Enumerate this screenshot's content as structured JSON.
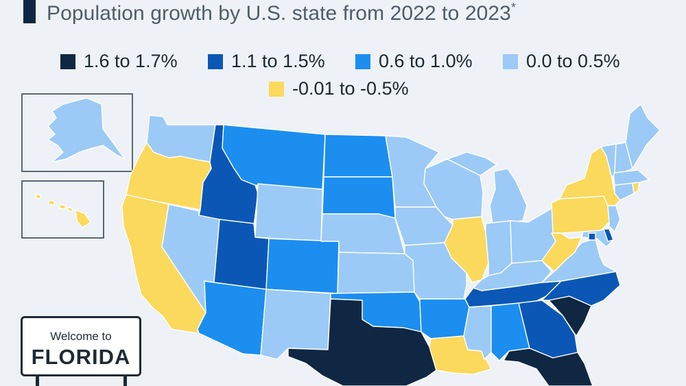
{
  "title": "Population growth by U.S. state from 2022 to 2023",
  "title_mark": "*",
  "colors": {
    "c1": "#0f2742",
    "c2": "#0b57b6",
    "c3": "#1b8ef0",
    "c4": "#9ccaf6",
    "c5": "#fad95c",
    "border": "#ffffff"
  },
  "legend": [
    {
      "label": "1.6 to 1.7%",
      "color": "#0f2742"
    },
    {
      "label": "1.1 to 1.5%",
      "color": "#0b57b6"
    },
    {
      "label": "0.6 to 1.0%",
      "color": "#1b8ef0"
    },
    {
      "label": "0.0 to 0.5%",
      "color": "#9ccaf6"
    },
    {
      "label": "-0.01 to -0.5%",
      "color": "#fad95c"
    }
  ],
  "sign": {
    "line1": "Welcome to",
    "line2": "FLORIDA"
  },
  "states": [
    {
      "name": "Washington",
      "class": "0.0 to 0.5%"
    },
    {
      "name": "Oregon",
      "class": "-0.01 to -0.5%"
    },
    {
      "name": "California",
      "class": "-0.01 to -0.5%"
    },
    {
      "name": "Idaho",
      "class": "1.1 to 1.5%"
    },
    {
      "name": "Nevada",
      "class": "0.0 to 0.5%"
    },
    {
      "name": "Montana",
      "class": "0.6 to 1.0%"
    },
    {
      "name": "Wyoming",
      "class": "0.0 to 0.5%"
    },
    {
      "name": "Utah",
      "class": "1.1 to 1.5%"
    },
    {
      "name": "Arizona",
      "class": "0.6 to 1.0%"
    },
    {
      "name": "Colorado",
      "class": "0.6 to 1.0%"
    },
    {
      "name": "New Mexico",
      "class": "0.0 to 0.5%"
    },
    {
      "name": "North Dakota",
      "class": "0.6 to 1.0%"
    },
    {
      "name": "South Dakota",
      "class": "0.6 to 1.0%"
    },
    {
      "name": "Nebraska",
      "class": "0.0 to 0.5%"
    },
    {
      "name": "Kansas",
      "class": "0.0 to 0.5%"
    },
    {
      "name": "Oklahoma",
      "class": "0.6 to 1.0%"
    },
    {
      "name": "Texas",
      "class": "1.6 to 1.7%"
    },
    {
      "name": "Minnesota",
      "class": "0.0 to 0.5%"
    },
    {
      "name": "Iowa",
      "class": "0.0 to 0.5%"
    },
    {
      "name": "Missouri",
      "class": "0.0 to 0.5%"
    },
    {
      "name": "Arkansas",
      "class": "0.6 to 1.0%"
    },
    {
      "name": "Louisiana",
      "class": "-0.01 to -0.5%"
    },
    {
      "name": "Wisconsin",
      "class": "0.0 to 0.5%"
    },
    {
      "name": "Illinois",
      "class": "-0.01 to -0.5%"
    },
    {
      "name": "Michigan",
      "class": "0.0 to 0.5%"
    },
    {
      "name": "Indiana",
      "class": "0.0 to 0.5%"
    },
    {
      "name": "Ohio",
      "class": "0.0 to 0.5%"
    },
    {
      "name": "Kentucky",
      "class": "0.0 to 0.5%"
    },
    {
      "name": "Tennessee",
      "class": "1.1 to 1.5%"
    },
    {
      "name": "Mississippi",
      "class": "0.0 to 0.5%"
    },
    {
      "name": "Alabama",
      "class": "0.6 to 1.0%"
    },
    {
      "name": "Georgia",
      "class": "1.1 to 1.5%"
    },
    {
      "name": "Florida",
      "class": "1.6 to 1.7%"
    },
    {
      "name": "South Carolina",
      "class": "1.6 to 1.7%"
    },
    {
      "name": "North Carolina",
      "class": "1.1 to 1.5%"
    },
    {
      "name": "Virginia",
      "class": "0.0 to 0.5%"
    },
    {
      "name": "West Virginia",
      "class": "-0.01 to -0.5%"
    },
    {
      "name": "Pennsylvania",
      "class": "-0.01 to -0.5%"
    },
    {
      "name": "New York",
      "class": "-0.01 to -0.5%"
    },
    {
      "name": "Maryland",
      "class": "0.0 to 0.5%"
    },
    {
      "name": "Delaware",
      "class": "1.1 to 1.5%"
    },
    {
      "name": "New Jersey",
      "class": "0.0 to 0.5%"
    },
    {
      "name": "Vermont",
      "class": "0.0 to 0.5%"
    },
    {
      "name": "New Hampshire",
      "class": "0.0 to 0.5%"
    },
    {
      "name": "Maine",
      "class": "0.0 to 0.5%"
    },
    {
      "name": "Massachusetts",
      "class": "0.0 to 0.5%"
    },
    {
      "name": "Connecticut",
      "class": "0.0 to 0.5%"
    },
    {
      "name": "Rhode Island",
      "class": "-0.01 to -0.5%"
    },
    {
      "name": "District of Columbia",
      "class": "1.1 to 1.5%"
    },
    {
      "name": "Alaska",
      "class": "0.0 to 0.5%"
    },
    {
      "name": "Hawaii",
      "class": "-0.01 to -0.5%"
    }
  ]
}
